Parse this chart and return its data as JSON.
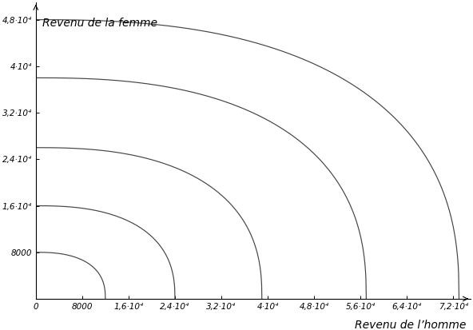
{
  "xlabel": "Revenu de l’homme",
  "ylabel": "Revenu de la femme",
  "xlim": [
    0,
    75000
  ],
  "ylim": [
    0,
    51000
  ],
  "xticks": [
    0,
    8000,
    16000,
    24000,
    32000,
    40000,
    48000,
    56000,
    64000,
    72000
  ],
  "yticks": [
    0,
    8000,
    16000,
    24000,
    32000,
    40000,
    48000
  ],
  "xtick_labels": [
    "0",
    "8000",
    "1,6·10⁴",
    "2,4·10⁴",
    "3,2·10⁴",
    "4·10⁴",
    "4,8·10⁴",
    "5,6·10⁴",
    "6,4·10⁴",
    "7,2·10⁴"
  ],
  "ytick_labels": [
    "",
    "8000",
    "1,6·10⁴",
    "2,4·10⁴",
    "3,2·10⁴",
    "4·10⁴",
    "4,8·10⁴"
  ],
  "curves": [
    {
      "y0": 8000,
      "x0": 12000,
      "n": 2.5
    },
    {
      "y0": 16000,
      "x0": 24000,
      "n": 2.5
    },
    {
      "y0": 26000,
      "x0": 39000,
      "n": 2.5
    },
    {
      "y0": 38000,
      "x0": 57000,
      "n": 2.5
    },
    {
      "y0": 48000,
      "x0": 73000,
      "n": 2.5
    }
  ],
  "line_color": "#444444",
  "line_width": 0.85,
  "font_size_labels": 10,
  "font_size_ticks": 7.5,
  "bg_color": "#ffffff"
}
